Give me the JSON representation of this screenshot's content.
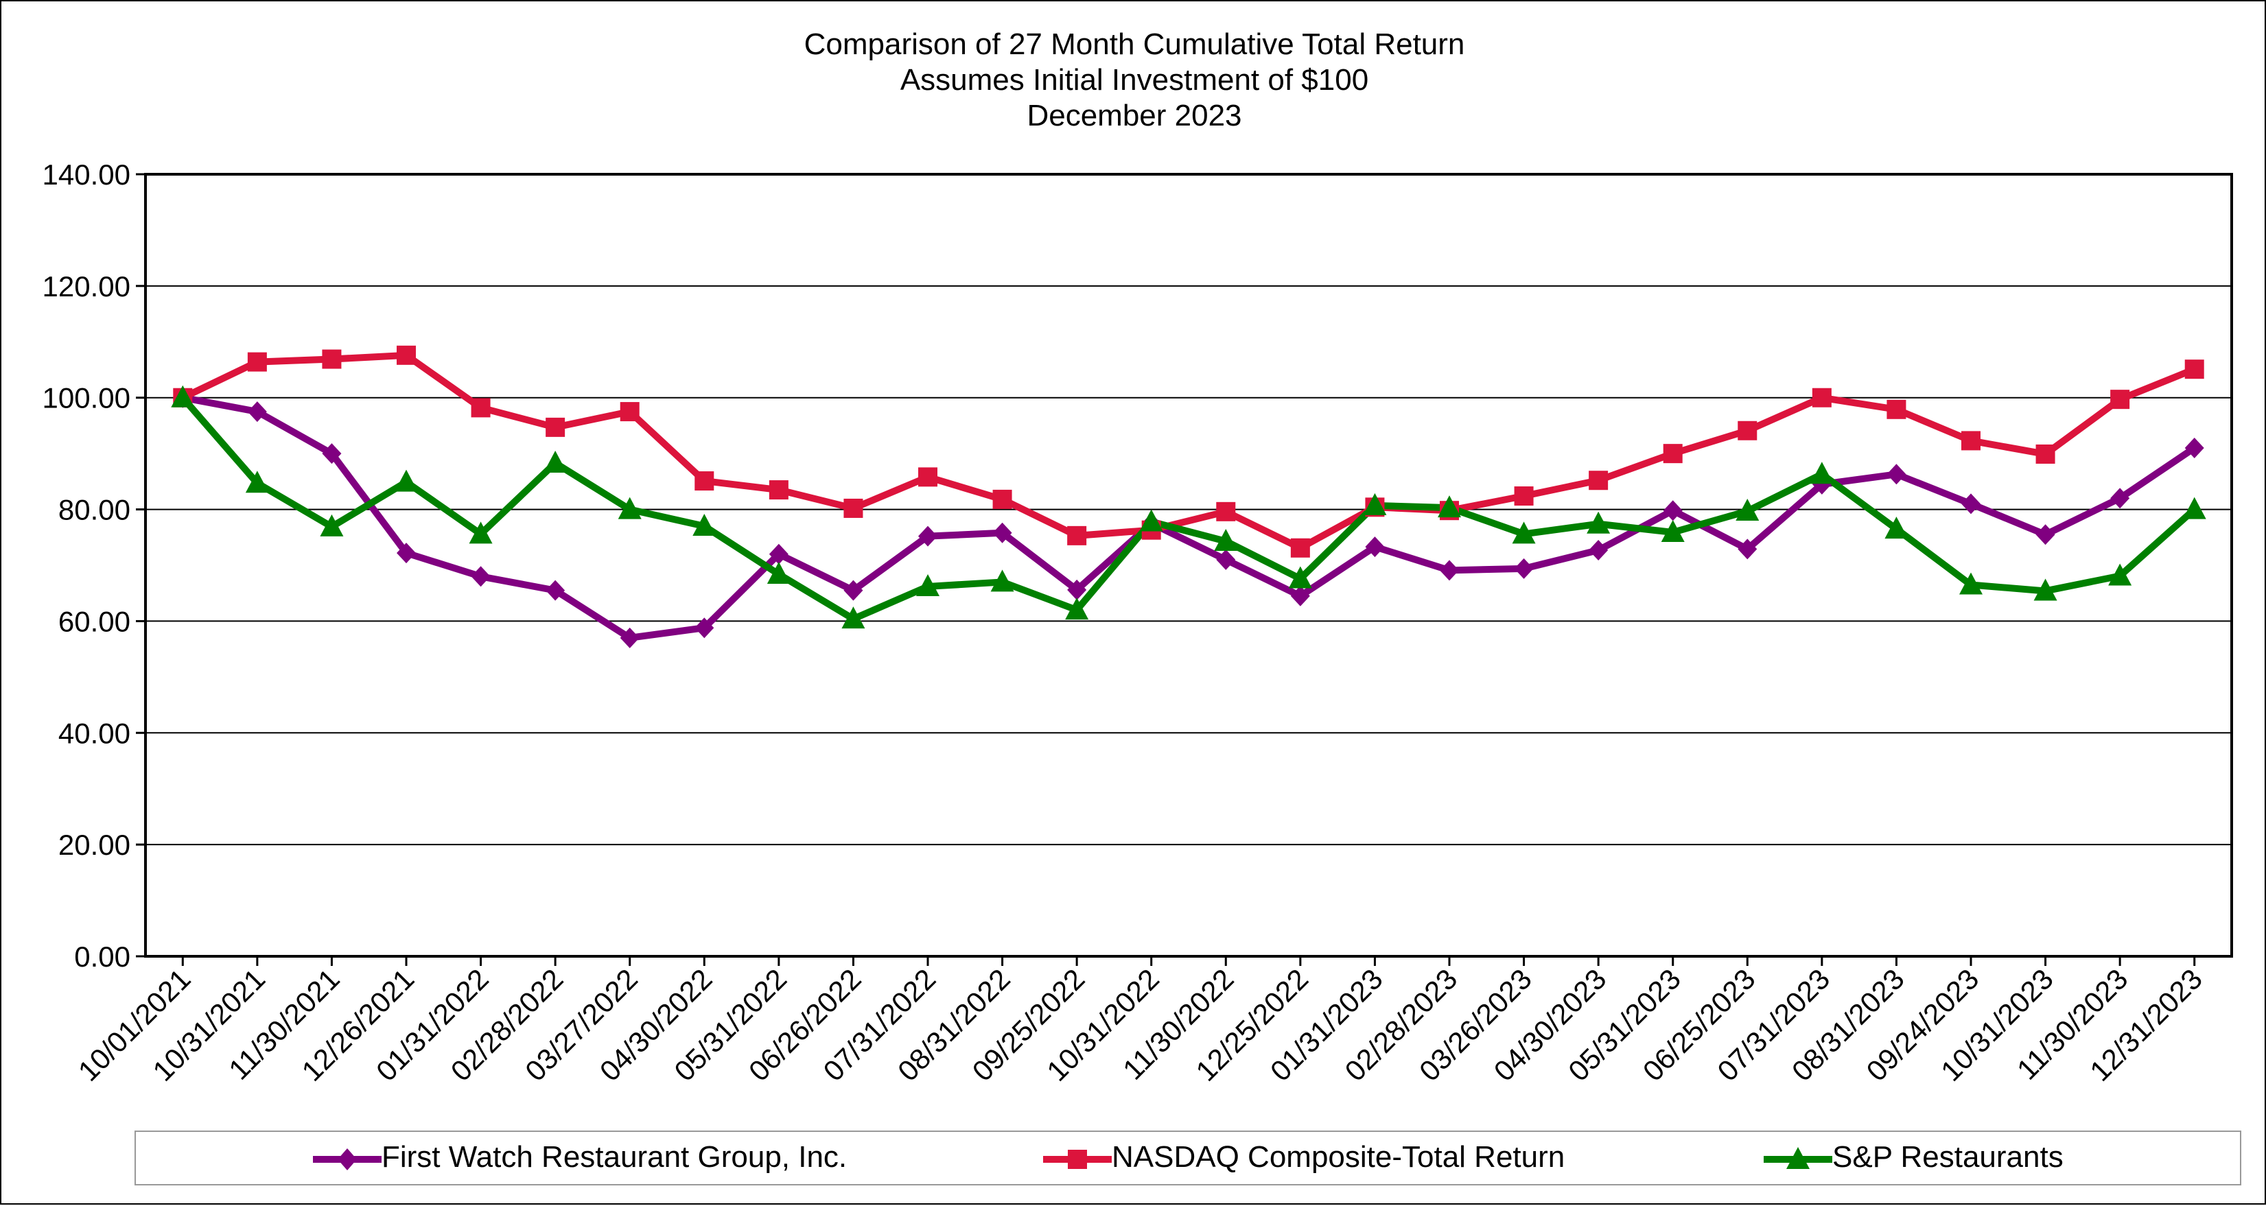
{
  "chart_data": {
    "type": "line",
    "title_lines": [
      "Comparison of 27 Month Cumulative Total Return",
      "Assumes Initial Investment of $100",
      "December 2023"
    ],
    "categories": [
      "10/01/2021",
      "10/31/2021",
      "11/30/2021",
      "12/26/2021",
      "01/31/2022",
      "02/28/2022",
      "03/27/2022",
      "04/30/2022",
      "05/31/2022",
      "06/26/2022",
      "07/31/2022",
      "08/31/2022",
      "09/25/2022",
      "10/31/2022",
      "11/30/2022",
      "12/25/2022",
      "01/31/2023",
      "02/28/2023",
      "03/26/2023",
      "04/30/2023",
      "05/31/2023",
      "06/25/2023",
      "07/31/2023",
      "08/31/2023",
      "09/24/2023",
      "10/31/2023",
      "11/30/2023",
      "12/31/2023"
    ],
    "ylim": [
      0,
      140
    ],
    "yticks": [
      "0.00",
      "20.00",
      "40.00",
      "60.00",
      "80.00",
      "100.00",
      "120.00",
      "140.00"
    ],
    "grid": true,
    "legend_position": "bottom",
    "series": [
      {
        "name": "First Watch Restaurant Group, Inc.",
        "color": "#800080",
        "marker": "diamond",
        "values": [
          100,
          97.5,
          90,
          72.2,
          68,
          65.5,
          57,
          58.8,
          72,
          65.5,
          75.2,
          75.8,
          65.6,
          77.5,
          71,
          64.5,
          73.3,
          69.1,
          69.4,
          72.7,
          79.8,
          72.9,
          84.5,
          86.3,
          81,
          75.5,
          82,
          91
        ]
      },
      {
        "name": "NASDAQ Composite-Total Return",
        "color": "#DC143C",
        "marker": "square",
        "values": [
          100,
          106.4,
          106.9,
          107.6,
          98.2,
          94.7,
          97.5,
          85.1,
          83.5,
          80.2,
          85.8,
          81.8,
          75.3,
          76.3,
          79.6,
          73.1,
          80.4,
          79.8,
          82.4,
          85.2,
          90,
          94.1,
          100,
          97.9,
          92.3,
          89.9,
          99.7,
          105.1
        ]
      },
      {
        "name": "S&P Restaurants",
        "color": "#008000",
        "marker": "triangle",
        "values": [
          100,
          84.7,
          76.9,
          84.9,
          75.6,
          88.3,
          80,
          77,
          68.4,
          60.4,
          66.2,
          67,
          62,
          77.8,
          74.3,
          67.6,
          80.7,
          80.3,
          75.6,
          77.4,
          75.9,
          79.7,
          86.3,
          76.5,
          66.5,
          65.4,
          68.1,
          80
        ]
      }
    ]
  }
}
